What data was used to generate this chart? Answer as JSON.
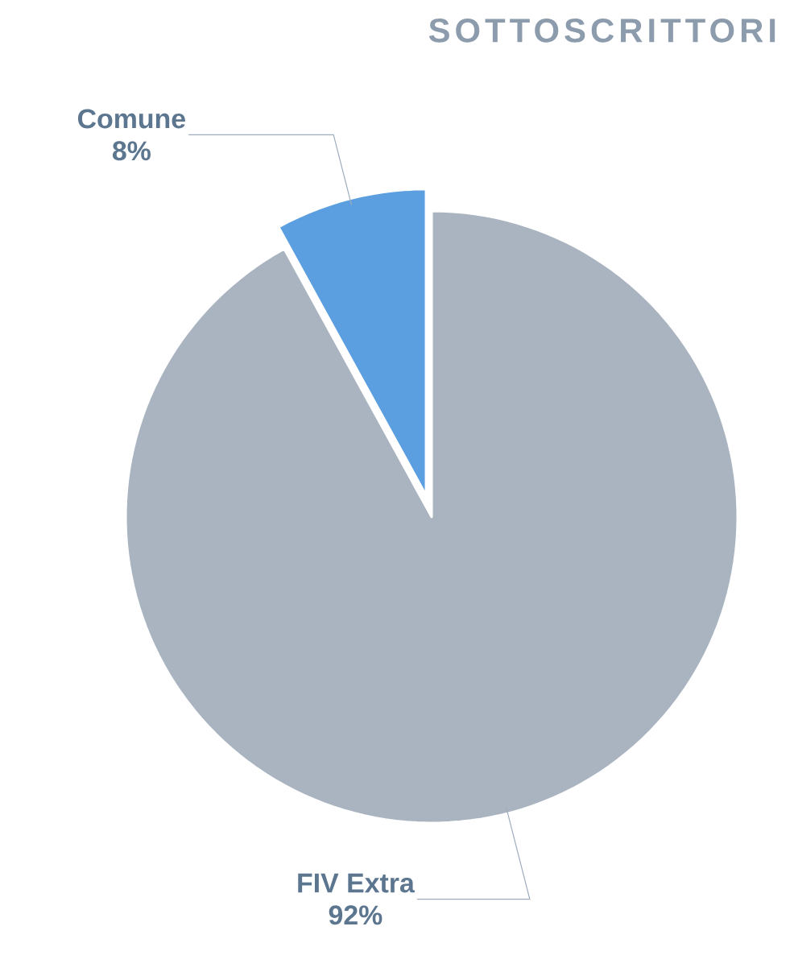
{
  "chart_data": {
    "type": "pie",
    "title": "SOTTOSCRITTORI",
    "categories": [
      "Comune",
      "FIV Extra"
    ],
    "values": [
      8,
      92
    ],
    "value_labels": [
      "8%",
      "92%"
    ],
    "colors": [
      "#5b9fe0",
      "#a9b4c0"
    ]
  }
}
